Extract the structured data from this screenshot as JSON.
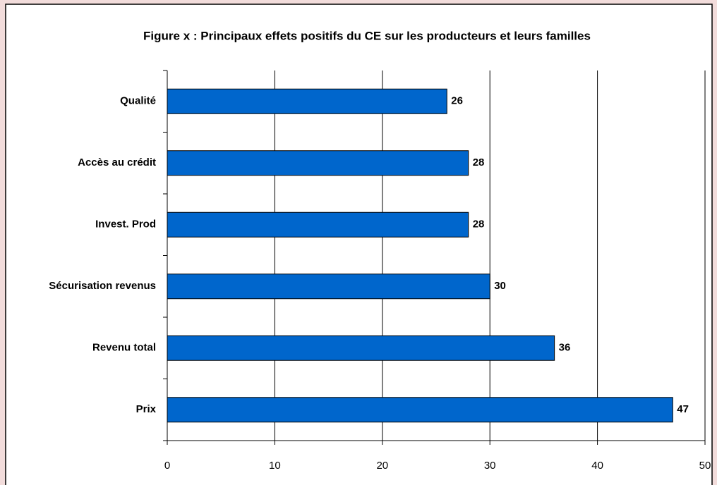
{
  "chart_data": {
    "type": "hbar",
    "title": "Figure x : Principaux effets positifs du CE sur les producteurs et leurs familles",
    "categories": [
      "Qualité",
      "Accès au crédit",
      "Invest. Prod",
      "Sécurisation revenus",
      "Revenu total",
      "Prix"
    ],
    "values": [
      26,
      28,
      28,
      30,
      36,
      47
    ],
    "color": "#0066cc",
    "xlim": [
      0,
      50
    ],
    "xticks": [
      0,
      10,
      20,
      30,
      40,
      50
    ],
    "grid": true
  }
}
